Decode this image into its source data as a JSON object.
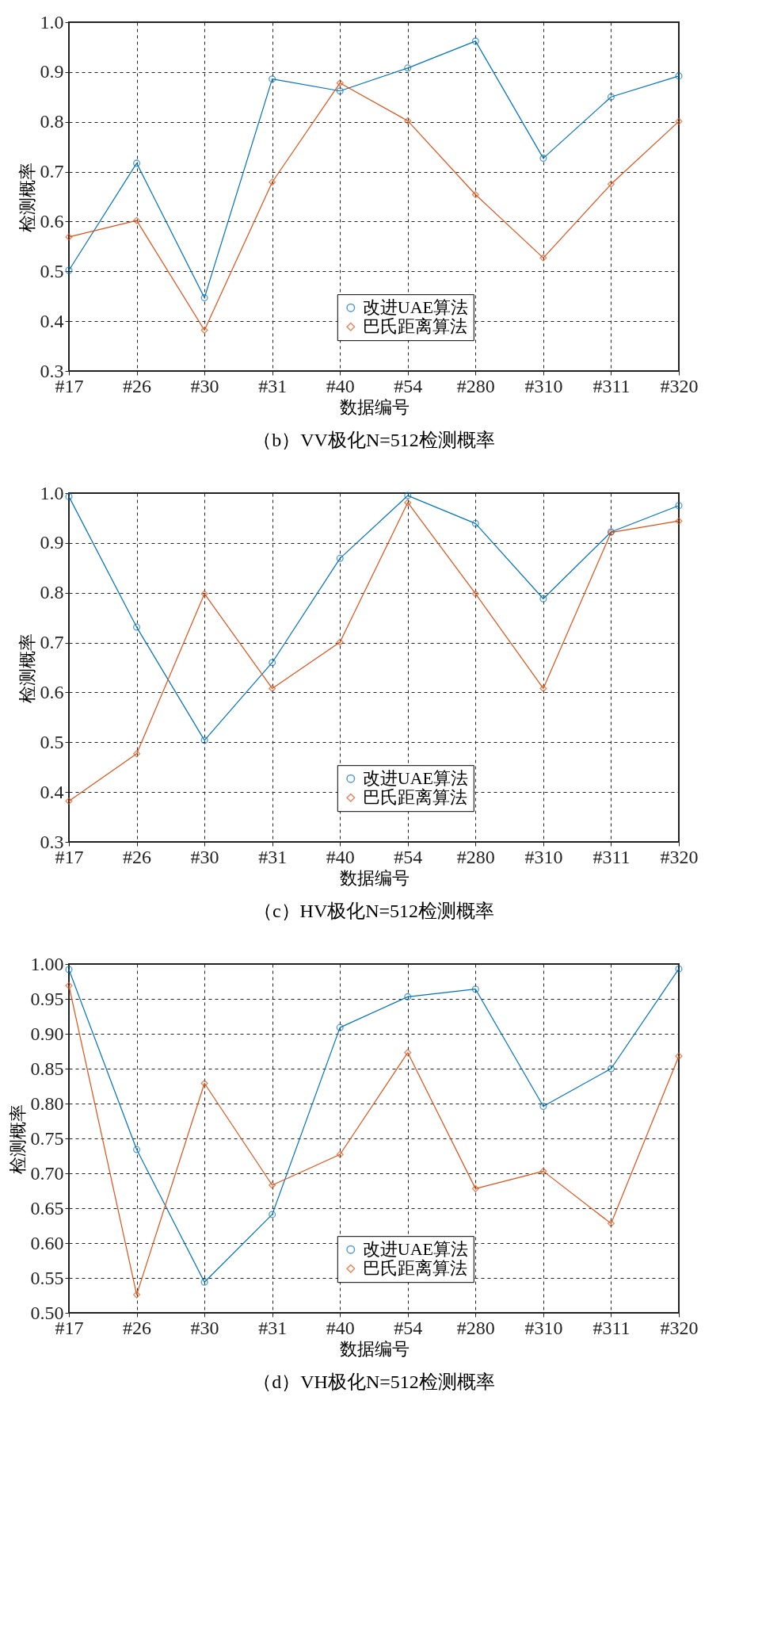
{
  "chart_data": [
    {
      "type": "line",
      "title": "（b）VV极化N=512检测概率",
      "xlabel": "数据编号",
      "ylabel": "检测概率",
      "categories": [
        "#17",
        "#26",
        "#30",
        "#31",
        "#40",
        "#54",
        "#280",
        "#310",
        "#311",
        "#320"
      ],
      "series": [
        {
          "name": "改进UAE算法",
          "color": "#0072bd",
          "marker": "circle",
          "values": [
            0.502,
            0.717,
            0.447,
            0.886,
            0.862,
            0.908,
            0.962,
            0.727,
            0.85,
            0.892
          ]
        },
        {
          "name": "巴氏距离算法",
          "color": "#d95319",
          "marker": "diamond",
          "values": [
            0.569,
            0.602,
            0.382,
            0.679,
            0.878,
            0.802,
            0.654,
            0.527,
            0.675,
            0.801
          ]
        }
      ],
      "ylim": [
        0.3,
        1.0
      ],
      "yticks": [
        {
          "value": 0.3,
          "label": "0.3"
        },
        {
          "value": 0.4,
          "label": "0.4"
        },
        {
          "value": 0.5,
          "label": "0.5"
        },
        {
          "value": 0.6,
          "label": "0.6"
        },
        {
          "value": 0.7,
          "label": "0.7"
        },
        {
          "value": 0.8,
          "label": "0.8"
        },
        {
          "value": 0.9,
          "label": "0.9"
        },
        {
          "value": 1.0,
          "label": "1.0"
        }
      ],
      "grid": true,
      "legend": "bottom right",
      "line_style": "solid"
    },
    {
      "type": "line",
      "title": "（c）HV极化N=512检测概率",
      "xlabel": "数据编号",
      "ylabel": "检测概率",
      "categories": [
        "#17",
        "#26",
        "#30",
        "#31",
        "#40",
        "#54",
        "#280",
        "#310",
        "#311",
        "#320"
      ],
      "series": [
        {
          "name": "改进UAE算法",
          "color": "#0072bd",
          "marker": "circle",
          "values": [
            0.993,
            0.731,
            0.504,
            0.66,
            0.869,
            0.995,
            0.939,
            0.788,
            0.922,
            0.975
          ]
        },
        {
          "name": "巴氏距离算法",
          "color": "#d95319",
          "marker": "diamond",
          "values": [
            0.382,
            0.477,
            0.798,
            0.608,
            0.701,
            0.981,
            0.798,
            0.608,
            0.921,
            0.944
          ]
        }
      ],
      "ylim": [
        0.3,
        1.0
      ],
      "yticks": [
        {
          "value": 0.3,
          "label": "0.3"
        },
        {
          "value": 0.4,
          "label": "0.4"
        },
        {
          "value": 0.5,
          "label": "0.5"
        },
        {
          "value": 0.6,
          "label": "0.6"
        },
        {
          "value": 0.7,
          "label": "0.7"
        },
        {
          "value": 0.8,
          "label": "0.8"
        },
        {
          "value": 0.9,
          "label": "0.9"
        },
        {
          "value": 1.0,
          "label": "1.0"
        }
      ],
      "grid": true,
      "legend": "bottom right",
      "line_style": "solid"
    },
    {
      "type": "line",
      "title": "（d）VH极化N=512检测概率",
      "xlabel": "数据编号",
      "ylabel": "检测概率",
      "categories": [
        "#17",
        "#26",
        "#30",
        "#31",
        "#40",
        "#54",
        "#280",
        "#310",
        "#311",
        "#320"
      ],
      "series": [
        {
          "name": "改进UAE算法",
          "color": "#0072bd",
          "marker": "circle",
          "values": [
            0.992,
            0.734,
            0.544,
            0.641,
            0.909,
            0.953,
            0.964,
            0.796,
            0.85,
            0.993
          ]
        },
        {
          "name": "巴氏距离算法",
          "color": "#d95319",
          "marker": "diamond",
          "values": [
            0.969,
            0.526,
            0.829,
            0.683,
            0.727,
            0.873,
            0.678,
            0.703,
            0.628,
            0.868
          ]
        }
      ],
      "ylim": [
        0.5,
        1.0
      ],
      "yticks": [
        {
          "value": 0.5,
          "label": "0.50"
        },
        {
          "value": 0.55,
          "label": "0.55"
        },
        {
          "value": 0.6,
          "label": "0.60"
        },
        {
          "value": 0.65,
          "label": "0.65"
        },
        {
          "value": 0.7,
          "label": "0.70"
        },
        {
          "value": 0.75,
          "label": "0.75"
        },
        {
          "value": 0.8,
          "label": "0.80"
        },
        {
          "value": 0.85,
          "label": "0.85"
        },
        {
          "value": 0.9,
          "label": "0.90"
        },
        {
          "value": 0.95,
          "label": "0.95"
        },
        {
          "value": 1.0,
          "label": "1.00"
        }
      ],
      "grid": true,
      "legend": "bottom right",
      "line_style": "solid"
    }
  ]
}
